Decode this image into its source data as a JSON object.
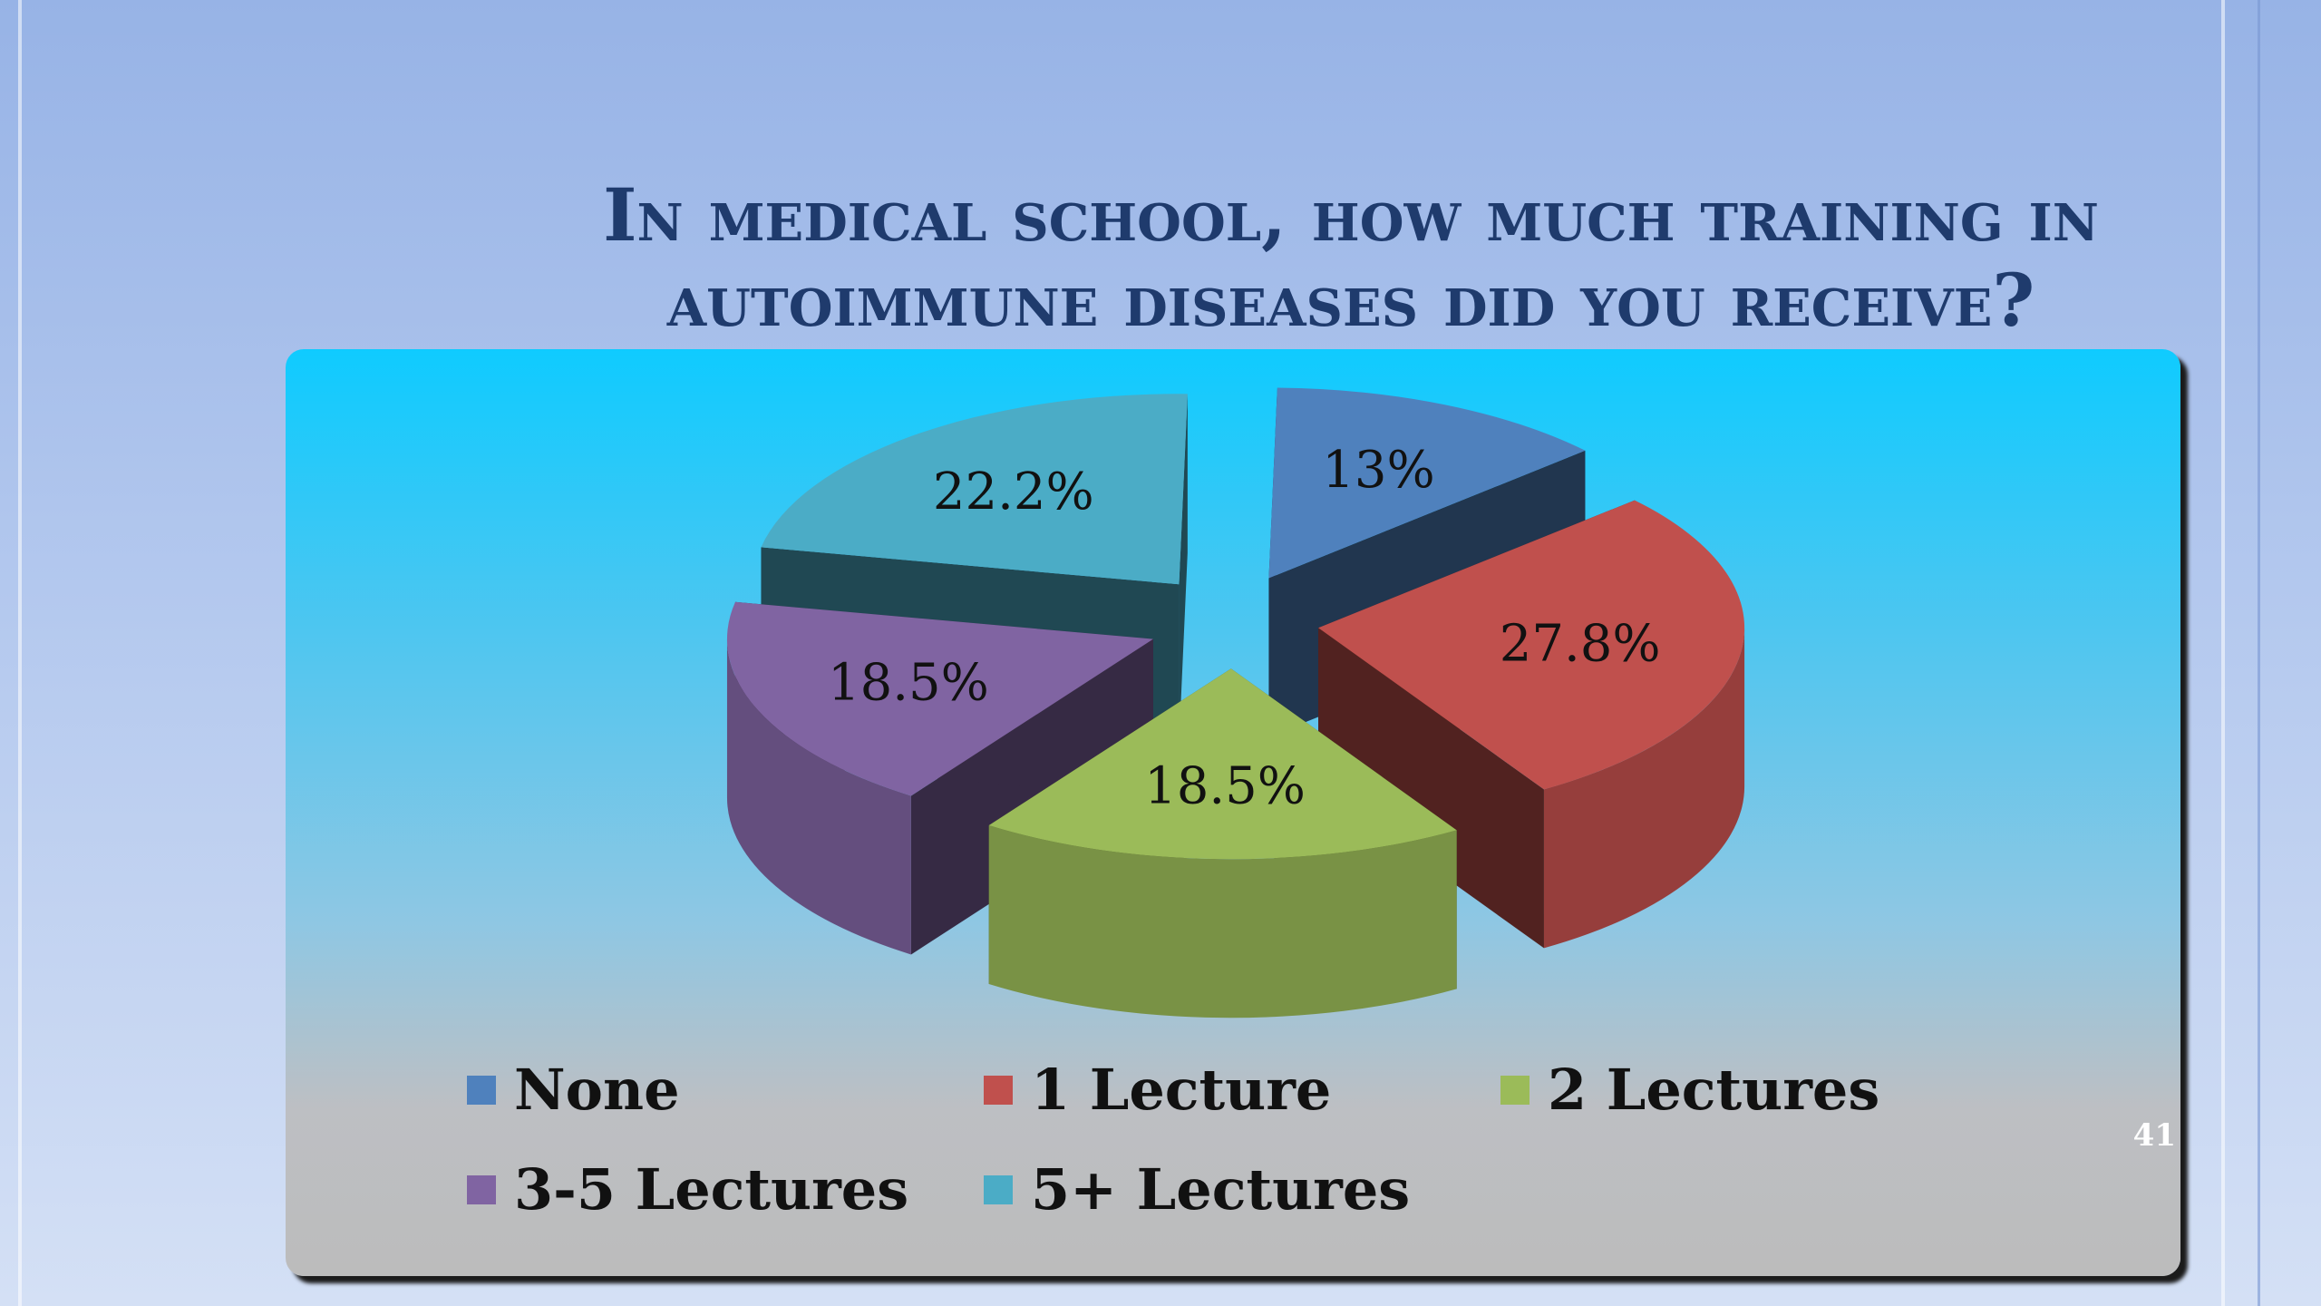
{
  "slide": {
    "title": "In medical school, how much training in autoimmune diseases did you receive?",
    "page_number": "41"
  },
  "chart_data": {
    "type": "pie",
    "style": "3d-exploded",
    "categories": [
      "None",
      "1 Lecture",
      "2 Lectures",
      "3-5 Lectures",
      "5+ Lectures"
    ],
    "values": [
      13,
      27.8,
      18.5,
      18.5,
      22.2
    ],
    "data_labels": [
      "13%",
      "27.8%",
      "18.5%",
      "18.5%",
      "22.2%"
    ],
    "colors": [
      "#4f81bd",
      "#c0504d",
      "#9bbb59",
      "#8064a2",
      "#4bacc6"
    ],
    "legend_position": "bottom",
    "legend": {
      "rows": [
        [
          "None",
          "1 Lecture",
          "2 Lectures"
        ],
        [
          "3-5 Lectures",
          "5+ Lectures"
        ]
      ]
    }
  }
}
